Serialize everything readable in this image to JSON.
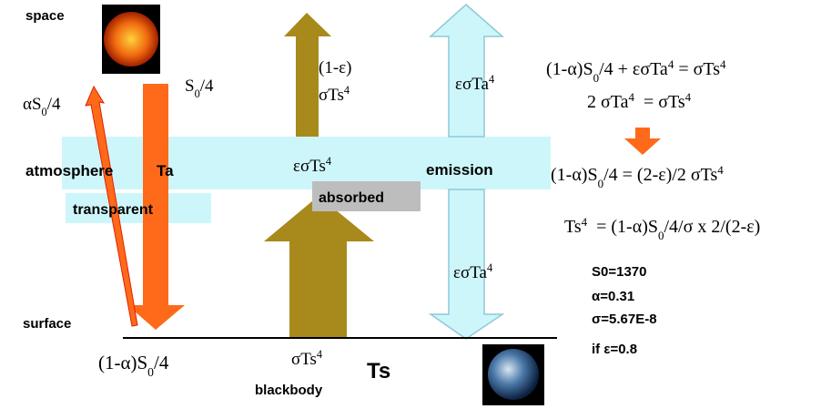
{
  "labels": {
    "space": [
      "space"
    ],
    "reflected": [
      "αS",
      {
        "sub": "0"
      },
      "/4"
    ],
    "incoming": [
      "S",
      {
        "sub": "0"
      },
      "/4"
    ],
    "escape_1": [
      "(1-ε)"
    ],
    "escape_2": [
      "σTs",
      {
        "sup": "4"
      }
    ],
    "emission_up": [
      "εσTa",
      {
        "sup": "4"
      }
    ],
    "atmosphere": [
      "atmosphere"
    ],
    "ta": [
      "Ta"
    ],
    "absorbed_flux": [
      "εσTs",
      {
        "sup": "4"
      }
    ],
    "emission": [
      "emission"
    ],
    "absorbed": [
      "absorbed"
    ],
    "transparent": [
      "transparent"
    ],
    "emission_down": [
      "εσTa",
      {
        "sup": "4"
      }
    ],
    "surface": [
      "surface"
    ],
    "surface_in": [
      "(1-α)S",
      {
        "sub": "0"
      },
      "/4"
    ],
    "surface_out": [
      "σTs",
      {
        "sup": "4"
      }
    ],
    "blackbody": [
      "blackbody"
    ],
    "ts": [
      "Ts"
    ],
    "eq1": [
      "(1-α)S",
      {
        "sub": "0"
      },
      "/4 + εσTa",
      {
        "sup": "4"
      },
      " = σTs",
      {
        "sup": "4"
      }
    ],
    "eq2": [
      "2 σTa",
      {
        "sup": "4"
      },
      "  = σTs",
      {
        "sup": "4"
      }
    ],
    "eq3": [
      "(1-α)S",
      {
        "sub": "0"
      },
      "/4 = (2-ε)/2 σTs",
      {
        "sup": "4"
      }
    ],
    "eq4": [
      "Ts",
      {
        "sup": "4"
      },
      "  = (1-α)S",
      {
        "sub": "0"
      },
      "/4/σ x 2/(2-ε)"
    ],
    "param_s0": [
      "S0=1370"
    ],
    "param_alpha": [
      "α=0.31"
    ],
    "param_sigma": [
      "σ=5.67E-8"
    ],
    "param_eps": [
      "if ε=0.8"
    ]
  }
}
